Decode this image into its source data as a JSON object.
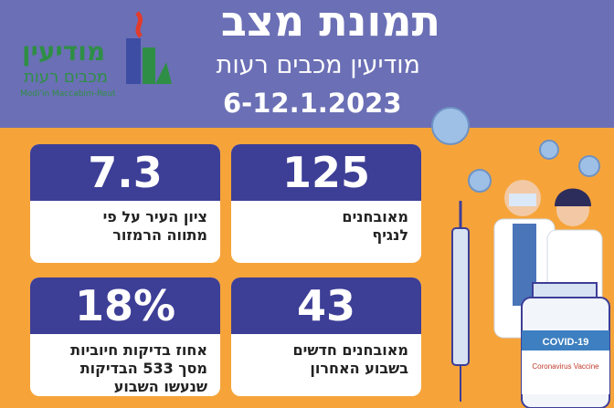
{
  "header": {
    "title": "תמונת מצב",
    "subtitle": "מודיעין מכבים רעות",
    "date_range": "6-12.1.2023"
  },
  "logo": {
    "name": "מודיעין",
    "sub": "מכבים רעות",
    "english": "Modi'in Maccabim-Reut"
  },
  "stats": [
    {
      "value": "125",
      "label": "מאובחנים\nלנגיף"
    },
    {
      "value": "7.3",
      "label": "ציון העיר על פי\nמתווה הרמזור"
    },
    {
      "value": "43",
      "label": "מאובחנים חדשים\nבשבוע האחרון"
    },
    {
      "value": "18%",
      "label": "אחוז בדיקות חיוביות\nמסך 533 הבדיקות\nשנעשו השבוע"
    }
  ],
  "illustration": {
    "vial_label": "COVID-19",
    "vial_sub": "Coronavirus\nVaccine"
  },
  "colors": {
    "header_bg": "#6b6fb5",
    "page_bg": "#f6a43a",
    "card_header": "#3d3e96",
    "logo_green": "#2f8e46"
  }
}
